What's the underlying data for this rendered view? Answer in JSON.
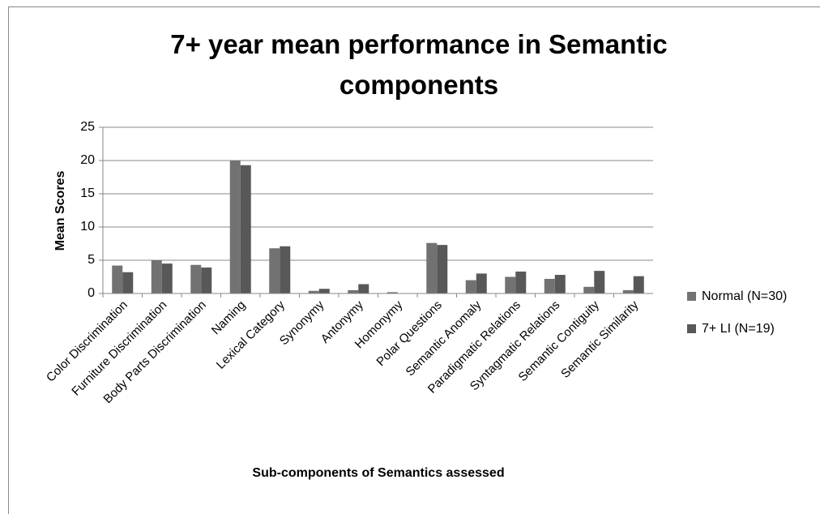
{
  "chart_data": {
    "type": "bar",
    "title": "7+ year mean performance in Semantic components",
    "x_label": "Sub-components of  Semantics assessed",
    "y_label": "Mean Scores",
    "categories": [
      "Color Discrimination",
      "Furniture Discrimination",
      "Body Parts Discrimination",
      "Naming",
      "Lexical Category",
      "Synonymy",
      "Antonymy",
      "Homonymy",
      "Polar Questions",
      "Semantic Anomaly",
      "Paradigmatic Relations",
      "Syntagmatic Relations",
      "Semantic Contiguity",
      "Semantic Similarity"
    ],
    "series": [
      {
        "name": "Normal (N=30)",
        "color": "#727272",
        "values": [
          4.2,
          5.0,
          4.3,
          20,
          6.8,
          0.4,
          0.5,
          0.2,
          7.6,
          2.0,
          2.5,
          2.2,
          1.0,
          0.5
        ]
      },
      {
        "name": "7+ LI (N=19)",
        "color": "#585858",
        "values": [
          3.2,
          4.5,
          3.9,
          19.3,
          7.1,
          0.7,
          1.4,
          0,
          7.3,
          3.0,
          3.3,
          2.8,
          3.4,
          2.6
        ]
      }
    ],
    "ylim": [
      0,
      25
    ],
    "yticks": [
      0,
      5,
      10,
      15,
      20,
      25
    ],
    "grid": true,
    "legend": "right"
  }
}
